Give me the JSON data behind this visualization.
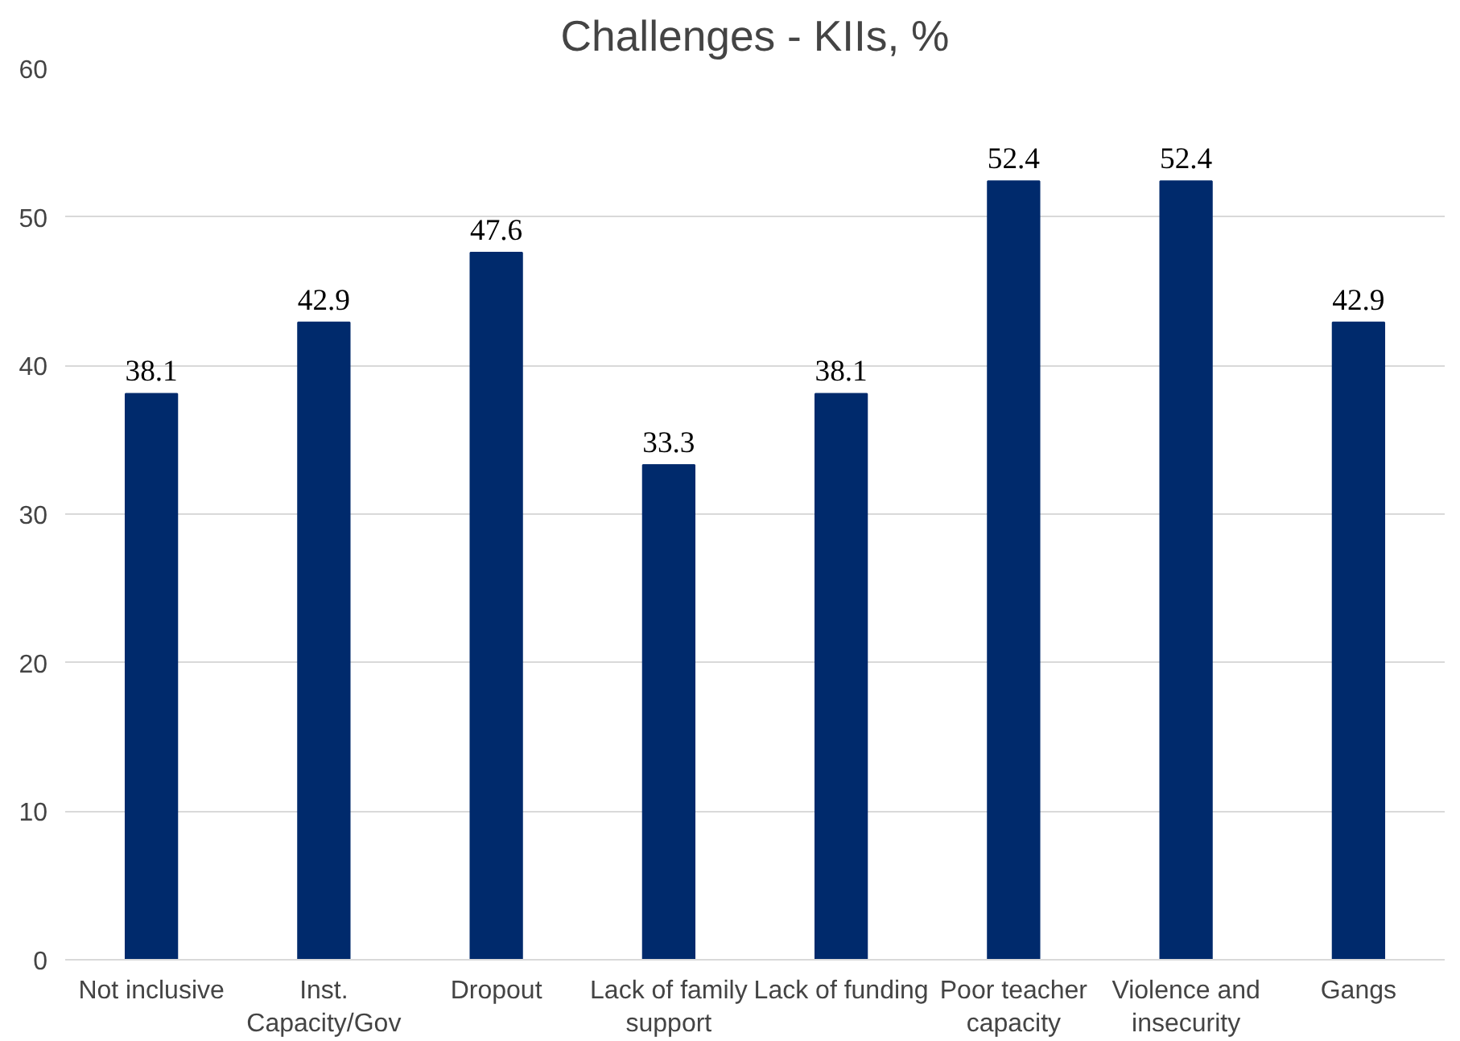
{
  "chart_data": {
    "type": "bar",
    "title": "Challenges - KIIs, %",
    "categories": [
      "Not inclusive",
      "Inst. Capacity/Gov",
      "Dropout",
      "Lack of family support",
      "Lack of funding",
      "Poor teacher capacity",
      "Violence and insecurity",
      "Gangs"
    ],
    "values": [
      38.1,
      42.9,
      47.6,
      33.3,
      38.1,
      52.4,
      52.4,
      42.9
    ],
    "color": "#002a6c",
    "ylim": [
      0,
      60
    ],
    "yticks": [
      0,
      10,
      20,
      30,
      40,
      50,
      60
    ],
    "grid": "y",
    "data_labels": true
  }
}
